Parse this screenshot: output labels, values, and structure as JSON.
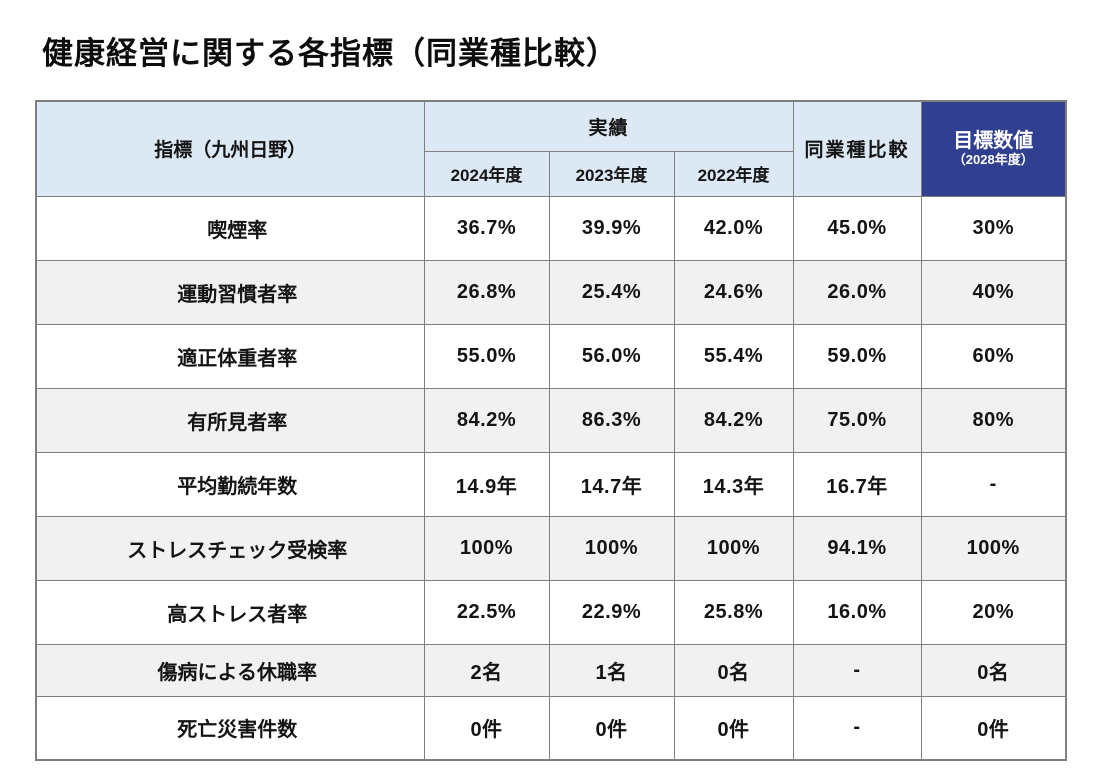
{
  "title": "健康経営に関する各指標（同業種比較）",
  "table": {
    "header": {
      "indicator": "指標（九州日野）",
      "results_group": "実績",
      "years": [
        "2024年度",
        "2023年度",
        "2022年度"
      ],
      "industry_comparison": "同業種比較",
      "target": "目標数値",
      "target_note": "（2028年度）"
    },
    "rows": [
      {
        "indicator": "喫煙率",
        "values": [
          "36.7%",
          "39.9%",
          "42.0%",
          "45.0%",
          "30%"
        ]
      },
      {
        "indicator": "運動習慣者率",
        "values": [
          "26.8%",
          "25.4%",
          "24.6%",
          "26.0%",
          "40%"
        ]
      },
      {
        "indicator": "適正体重者率",
        "values": [
          "55.0%",
          "56.0%",
          "55.4%",
          "59.0%",
          "60%"
        ]
      },
      {
        "indicator": "有所見者率",
        "values": [
          "84.2%",
          "86.3%",
          "84.2%",
          "75.0%",
          "80%"
        ]
      },
      {
        "indicator": "平均勤続年数",
        "values": [
          "14.9年",
          "14.7年",
          "14.3年",
          "16.7年",
          "-"
        ]
      },
      {
        "indicator": "ストレスチェック受検率",
        "values": [
          "100%",
          "100%",
          "100%",
          "94.1%",
          "100%"
        ]
      },
      {
        "indicator": "高ストレス者率",
        "values": [
          "22.5%",
          "22.9%",
          "25.8%",
          "16.0%",
          "20%"
        ]
      },
      {
        "indicator": "傷病による休職率",
        "values": [
          "2名",
          "1名",
          "0名",
          "-",
          "0名"
        ]
      },
      {
        "indicator": "死亡災害件数",
        "values": [
          "0件",
          "0件",
          "0件",
          "-",
          "0件"
        ]
      }
    ]
  },
  "colors": {
    "header_bg": "#dce8f4",
    "target_header_bg": "#303f8f",
    "target_text": "#ffffff",
    "row_alt_bg": "#f1f1f1",
    "border": "#7f7f7f"
  }
}
